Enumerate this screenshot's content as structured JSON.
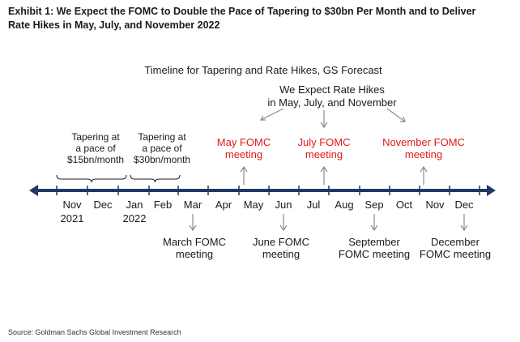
{
  "exhibit_title": "Exhibit 1: We Expect the FOMC to Double the Pace of Tapering to $30bn Per Month and to Deliver Rate Hikes in May, July, and November 2022",
  "diagram_title": "Timeline for Tapering and Rate Hikes, GS Forecast",
  "hike_callout": [
    "We Expect Rate Hikes",
    "in May, July, and November"
  ],
  "tapering": [
    {
      "lines": [
        "Tapering at",
        "a pace of",
        "$15bn/month"
      ]
    },
    {
      "lines": [
        "Tapering at",
        "a pace of",
        "$30bn/month"
      ]
    }
  ],
  "months": [
    "Nov",
    "Dec",
    "Jan",
    "Feb",
    "Mar",
    "Apr",
    "May",
    "Jun",
    "Jul",
    "Aug",
    "Sep",
    "Oct",
    "Nov",
    "Dec"
  ],
  "years": [
    "2021",
    "2022"
  ],
  "hike_meetings": [
    {
      "lines": [
        "May FOMC",
        "meeting"
      ]
    },
    {
      "lines": [
        "July FOMC",
        "meeting"
      ]
    },
    {
      "lines": [
        "November FOMC",
        "meeting"
      ]
    }
  ],
  "other_meetings": [
    {
      "lines": [
        "March FOMC",
        "meeting"
      ]
    },
    {
      "lines": [
        "June FOMC",
        "meeting"
      ]
    },
    {
      "lines": [
        "September",
        "FOMC meeting"
      ]
    },
    {
      "lines": [
        "December",
        "FOMC meeting"
      ]
    }
  ],
  "source": "Source: Goldman Sachs Global Investment Research",
  "colors": {
    "axis": "#1f3864",
    "hike": "#e0191b",
    "text": "#1a1a1a",
    "arrow": "#8c8c8c"
  }
}
